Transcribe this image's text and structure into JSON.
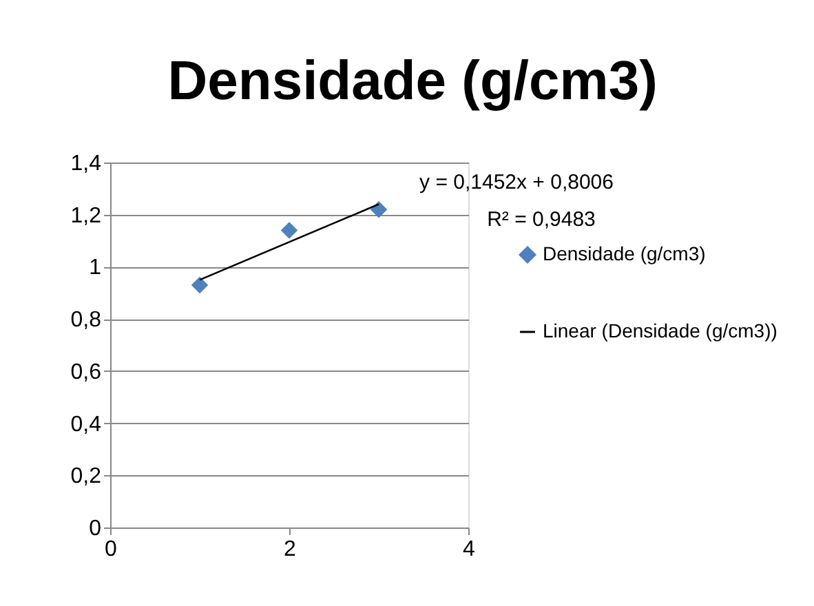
{
  "chart_data": {
    "type": "scatter",
    "title": "Densidade (g/cm3)",
    "series": [
      {
        "name": "Densidade (g/cm3)",
        "marker": "diamond",
        "color": "#4f81bd",
        "x": [
          1,
          2,
          3
        ],
        "values": [
          0.93,
          1.14,
          1.22
        ]
      },
      {
        "name": "Linear (Densidade (g/cm3))",
        "type": "line",
        "marker": "none",
        "line_style": "solid",
        "color": "#000000",
        "x": [
          1,
          3
        ],
        "values": [
          0.95,
          1.24
        ]
      }
    ],
    "annotations": [
      "y = 0,1452x + 0,8006",
      "R² = 0,9483"
    ],
    "xlim": [
      0,
      4
    ],
    "xticks": [
      0,
      2,
      4
    ],
    "ylim": [
      0,
      1.4
    ],
    "yticks": [
      0,
      {
        "value": 0.2,
        "label": "0,2"
      },
      {
        "value": 0.4,
        "label": "0,4"
      },
      {
        "value": 0.6,
        "label": "0,6"
      },
      {
        "value": 0.8,
        "label": "0,8"
      },
      1,
      {
        "value": 1.2,
        "label": "1,2"
      },
      {
        "value": 1.4,
        "label": "1,4"
      }
    ],
    "grid": "y",
    "legend": "right"
  }
}
